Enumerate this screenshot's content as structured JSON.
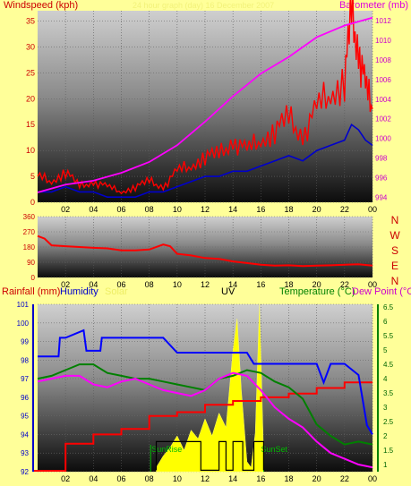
{
  "header": {
    "left": "Windspeed (kph)",
    "center": "24 hour graph (day) 16 December 2007",
    "right": "Barometer (mb)"
  },
  "compass": [
    "N",
    "W",
    "S",
    "E",
    "N"
  ],
  "bottom_header": {
    "rainfall": "Rainfall (mm)",
    "humidity": "Humidity",
    "solar": "Solar",
    "uv": "UV",
    "temperature": "Temperature (°C)",
    "dewpoint": "Dew Point (°C)"
  },
  "annotations": {
    "sunrise": "SunRise",
    "sunset": "SunSet"
  },
  "colors": {
    "background": "#ffff99",
    "wind_speed": "#ff0000",
    "wind_gust": "#0000cc",
    "barometer": "#ff00ff",
    "wind_dir": "#ff0000",
    "rainfall": "#ff0000",
    "humidity": "#0000ff",
    "solar": "#ffff00",
    "uv": "#000000",
    "temperature": "#008000",
    "dewpoint": "#ff00ff",
    "sunrise_sunset": "#00bb00"
  },
  "chart_data": [
    {
      "type": "line",
      "panel": "wind-barometer",
      "x_ticks": [
        "02",
        "04",
        "06",
        "08",
        "10",
        "12",
        "14",
        "16",
        "18",
        "20",
        "22",
        "00"
      ],
      "y_left": {
        "ticks": [
          0,
          5,
          10,
          15,
          20,
          25,
          30,
          35
        ],
        "ylim": [
          0,
          37
        ]
      },
      "y_right": {
        "ticks": [
          994,
          996,
          998,
          1000,
          1002,
          1004,
          1006,
          1008,
          1010,
          1012
        ],
        "ylim": [
          993.5,
          1013
        ]
      },
      "series": [
        {
          "axis": "left",
          "x": [
            0,
            1,
            2,
            3,
            4,
            5,
            6,
            7,
            8,
            9,
            10,
            11,
            12,
            13,
            14,
            15,
            16,
            17,
            18,
            19,
            20,
            21,
            22,
            22.5,
            23,
            23.5,
            24
          ],
          "values": [
            5,
            4,
            6,
            3,
            4,
            3,
            2,
            3,
            4,
            3,
            6,
            7,
            9,
            9,
            12,
            10,
            12,
            14,
            16,
            13,
            18,
            21,
            24,
            36,
            30,
            22,
            18
          ]
        },
        {
          "axis": "left",
          "x": [
            0,
            1,
            2,
            3,
            4,
            5,
            6,
            7,
            8,
            9,
            10,
            11,
            12,
            13,
            14,
            15,
            16,
            17,
            18,
            19,
            20,
            21,
            22,
            22.5,
            23,
            23.5,
            24
          ],
          "values": [
            2,
            2,
            3,
            2,
            2,
            1,
            1,
            1,
            2,
            2,
            3,
            4,
            5,
            5,
            6,
            6,
            7,
            8,
            9,
            8,
            10,
            11,
            12,
            15,
            14,
            12,
            11
          ]
        },
        {
          "axis": "right",
          "x": [
            0,
            2,
            4,
            6,
            8,
            10,
            12,
            14,
            16,
            18,
            20,
            22,
            24
          ],
          "values": [
            994.5,
            995.3,
            995.7,
            996.5,
            997.6,
            999.3,
            1001.7,
            1004.3,
            1006.6,
            1008.3,
            1010.3,
            1011.5,
            1012.3
          ]
        }
      ]
    },
    {
      "type": "line",
      "panel": "wind-direction",
      "x_ticks": [
        "02",
        "04",
        "06",
        "08",
        "10",
        "12",
        "14",
        "16",
        "18",
        "20",
        "22",
        "00"
      ],
      "y_ticks": [
        0,
        90,
        180,
        270,
        360
      ],
      "ylim": [
        0,
        360
      ],
      "series": [
        {
          "x": [
            0,
            0.5,
            1,
            2,
            3,
            4,
            5,
            6,
            7,
            8,
            9,
            9.5,
            10,
            11,
            12,
            13,
            14,
            15,
            16,
            17,
            18,
            19,
            20,
            21,
            22,
            23,
            24
          ],
          "values": [
            245,
            230,
            190,
            185,
            180,
            175,
            172,
            160,
            160,
            165,
            195,
            185,
            140,
            130,
            115,
            110,
            95,
            85,
            75,
            70,
            72,
            68,
            70,
            72,
            75,
            78,
            70
          ]
        }
      ]
    },
    {
      "type": "line",
      "panel": "rain-humidity-solar-uv-temperature",
      "x_ticks": [
        "02",
        "04",
        "06",
        "08",
        "10",
        "12",
        "14",
        "16",
        "18",
        "20",
        "22",
        "00"
      ],
      "y_left": {
        "ticks": [
          92,
          93,
          94,
          95,
          96,
          97,
          98,
          99,
          100,
          101
        ],
        "ylim": [
          92,
          101
        ]
      },
      "y_right": {
        "ticks": [
          1,
          1.5,
          2,
          2.5,
          3,
          3.5,
          4,
          4.5,
          5,
          5.5,
          6,
          6.5
        ],
        "ylim": [
          0.75,
          6.6
        ]
      },
      "series": [
        {
          "axis": "left",
          "x": [
            0,
            2,
            2,
            4,
            4,
            6,
            6,
            8,
            8,
            10,
            10,
            12,
            12,
            14,
            14,
            16,
            16,
            18,
            18,
            20,
            20,
            22,
            22,
            24
          ],
          "values": [
            92.05,
            92.05,
            93.5,
            93.5,
            94,
            94,
            94.3,
            94.3,
            95,
            95,
            95.2,
            95.2,
            95.6,
            95.6,
            95.8,
            95.8,
            96,
            96,
            96.2,
            96.2,
            96.5,
            96.5,
            96.8,
            96.8
          ]
        },
        {
          "axis": "left",
          "x": [
            0,
            1.5,
            1.6,
            2,
            3.3,
            3.5,
            4.5,
            4.6,
            6,
            9,
            10,
            12,
            14,
            15,
            15.5,
            18,
            20,
            20.5,
            21,
            22,
            23,
            23.6,
            24
          ],
          "values": [
            98.2,
            98.2,
            99.2,
            99.2,
            99.6,
            98.5,
            98.5,
            99.2,
            99.2,
            99.2,
            98.4,
            98.4,
            98.4,
            98.4,
            97.8,
            97.8,
            97.8,
            96.8,
            97.8,
            97.8,
            97.2,
            94.5,
            94
          ]
        },
        {
          "axis": "right",
          "x": [
            0,
            1,
            2,
            3,
            4,
            5,
            6,
            7,
            8,
            9,
            10,
            11,
            12,
            13,
            14,
            15,
            16,
            17,
            18,
            19,
            20,
            21,
            22,
            23,
            24
          ],
          "values": [
            4.0,
            4.1,
            4.3,
            4.5,
            4.5,
            4.2,
            4.1,
            4.0,
            4.0,
            3.9,
            3.8,
            3.7,
            3.6,
            4.0,
            4.1,
            4.3,
            4.2,
            3.9,
            3.7,
            3.3,
            2.4,
            2.0,
            1.7,
            1.8,
            1.7
          ]
        },
        {
          "axis": "right",
          "x": [
            0,
            1,
            2,
            3,
            4,
            5,
            6,
            7,
            8,
            9,
            10,
            11,
            12,
            13,
            14,
            15,
            16,
            17,
            18,
            19,
            20,
            21,
            22,
            23,
            24
          ],
          "values": [
            3.9,
            4.0,
            4.1,
            4.1,
            3.8,
            3.7,
            3.9,
            4.0,
            3.8,
            3.6,
            3.5,
            3.4,
            3.6,
            4.0,
            4.2,
            4.1,
            3.6,
            3.0,
            2.6,
            2.3,
            1.8,
            1.4,
            1.2,
            1.0,
            0.9
          ]
        },
        {
          "axis": "right",
          "x": [
            8.5,
            9,
            9.5,
            10,
            10.5,
            11,
            11.5,
            12,
            12.5,
            13,
            13.5,
            14,
            14.3,
            14.6,
            15,
            15.3,
            15.6,
            15.9,
            16.2
          ],
          "values": [
            0.9,
            1.3,
            1.6,
            2.0,
            1.5,
            2.2,
            1.9,
            2.6,
            2.0,
            2.8,
            2.3,
            5.0,
            6.1,
            3.6,
            1.1,
            0.9,
            2.1,
            6.6,
            1.3
          ]
        },
        {
          "axis": "right",
          "x": [
            8.5,
            8.5,
            11.7,
            11.7,
            13,
            13,
            13.5,
            13.5,
            14,
            14,
            14.7,
            14.7,
            15.5,
            15.5,
            16.2,
            16.2
          ],
          "values": [
            0.8,
            1.8,
            1.8,
            0.8,
            0.8,
            1.8,
            1.8,
            0.8,
            0.8,
            1.8,
            1.8,
            0.8,
            0.8,
            1.8,
            1.8,
            0.8
          ]
        }
      ]
    }
  ]
}
